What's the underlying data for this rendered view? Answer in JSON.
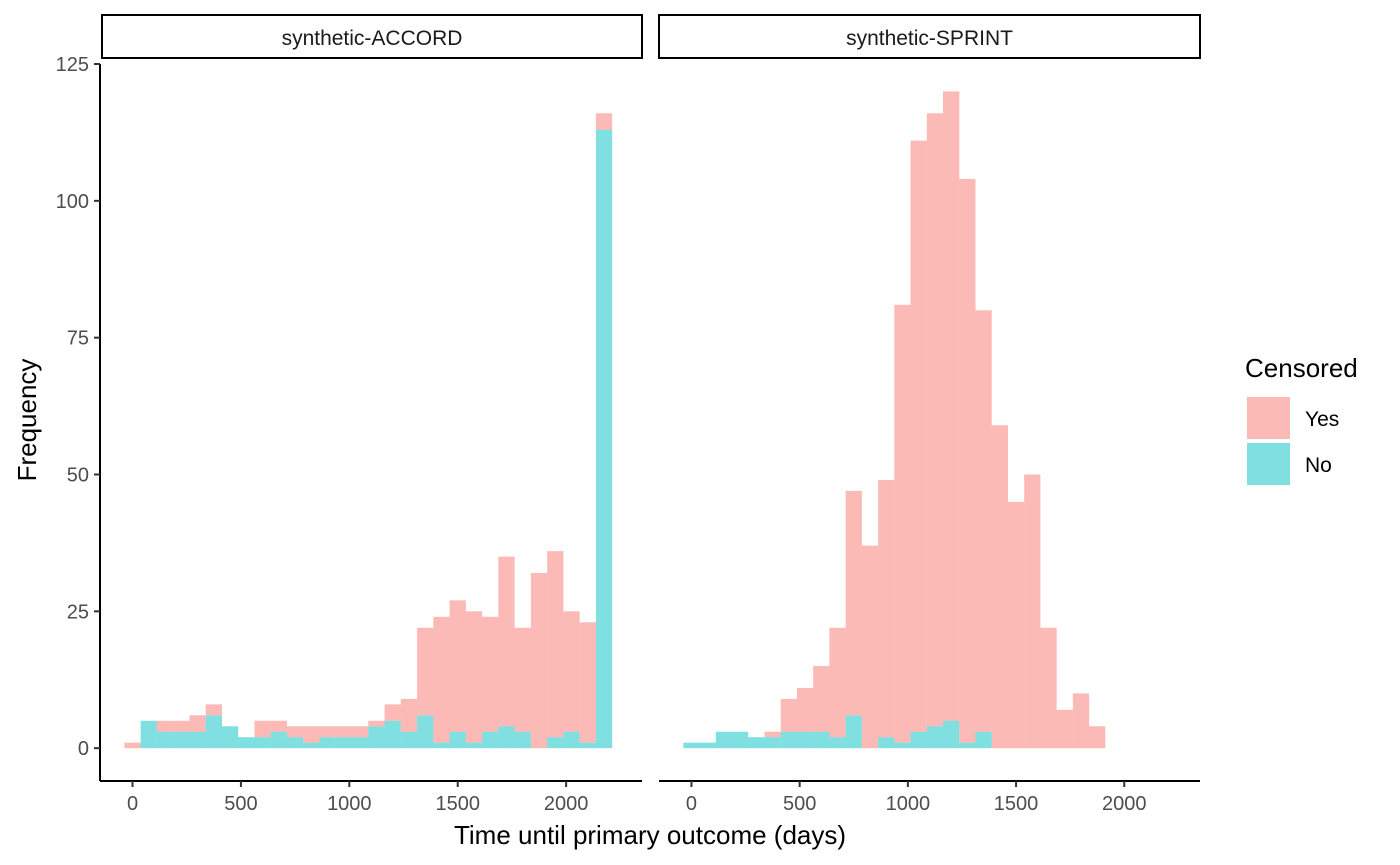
{
  "chart_data": {
    "type": "bar",
    "subtype": "faceted-stacked-histogram",
    "xlabel": "Time until primary outcome (days)",
    "ylabel": "Frequency",
    "ylim": [
      -6,
      125
    ],
    "xlim": [
      -150,
      2350
    ],
    "y_ticks": [
      "0",
      "25",
      "50",
      "75",
      "100",
      "125"
    ],
    "x_ticks": [
      "0",
      "500",
      "1000",
      "1500",
      "2000"
    ],
    "bin_width": 75,
    "legend": {
      "title": "Censored",
      "placement": "right",
      "entries": [
        {
          "name": "Yes",
          "color": "#F8766D"
        },
        {
          "name": "No",
          "color": "#00BFC4"
        }
      ]
    },
    "panels": [
      {
        "title": "synthetic-ACCORD",
        "bin_centers": [
          0,
          75,
          150,
          225,
          300,
          375,
          450,
          525,
          600,
          675,
          750,
          825,
          900,
          975,
          1050,
          1125,
          1200,
          1275,
          1350,
          1425,
          1500,
          1575,
          1650,
          1725,
          1800,
          1875,
          1950,
          2025,
          2100,
          2175
        ],
        "series": [
          {
            "name": "Yes",
            "values": [
              1,
              0,
              2,
              2,
              3,
              2,
              0,
              0,
              3,
              2,
              2,
              3,
              2,
              2,
              2,
              1,
              3,
              6,
              16,
              23,
              24,
              24,
              21,
              31,
              19,
              32,
              34,
              22,
              22,
              3
            ]
          },
          {
            "name": "No",
            "values": [
              0,
              5,
              3,
              3,
              3,
              6,
              4,
              2,
              2,
              3,
              2,
              1,
              2,
              2,
              2,
              4,
              5,
              3,
              6,
              1,
              3,
              1,
              3,
              4,
              3,
              0,
              2,
              3,
              1,
              113
            ]
          }
        ]
      },
      {
        "title": "synthetic-SPRINT",
        "bin_centers": [
          0,
          75,
          150,
          225,
          300,
          375,
          450,
          525,
          600,
          675,
          750,
          825,
          900,
          975,
          1050,
          1125,
          1200,
          1275,
          1350,
          1425,
          1500,
          1575,
          1650,
          1725,
          1800,
          1875
        ],
        "series": [
          {
            "name": "Yes",
            "values": [
              0,
              0,
              0,
              0,
              0,
              1,
              6,
              8,
              12,
              20,
              41,
              37,
              47,
              80,
              108,
              112,
              115,
              103,
              77,
              59,
              45,
              50,
              22,
              7,
              10,
              4
            ]
          },
          {
            "name": "No",
            "values": [
              1,
              1,
              3,
              3,
              2,
              2,
              3,
              3,
              3,
              2,
              6,
              0,
              2,
              1,
              3,
              4,
              5,
              1,
              3,
              0,
              0,
              0,
              0,
              0,
              0,
              0
            ]
          }
        ]
      }
    ]
  }
}
